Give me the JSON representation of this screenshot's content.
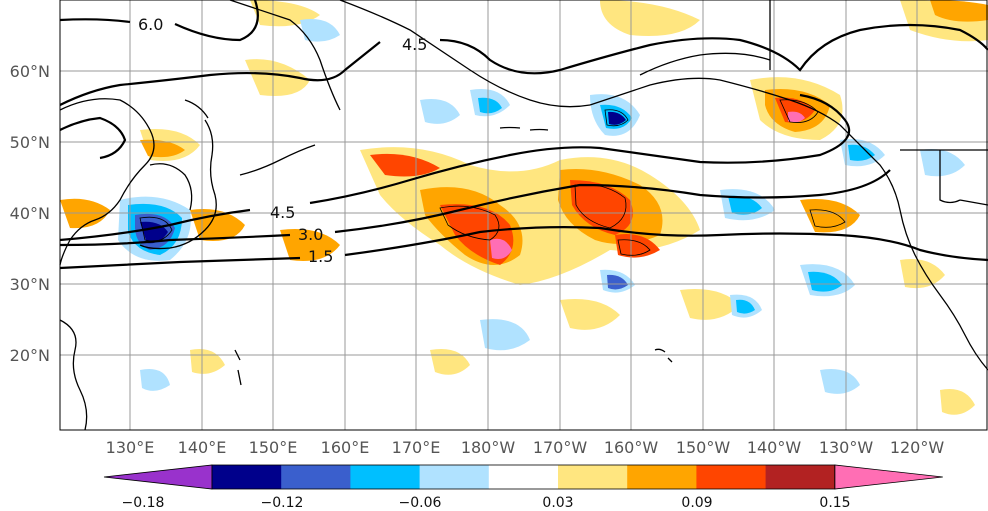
{
  "map": {
    "lat_labels": [
      "60°N",
      "50°N",
      "40°N",
      "30°N",
      "20°N"
    ],
    "lon_labels": [
      "130°E",
      "140°E",
      "150°E",
      "160°E",
      "170°E",
      "180°W",
      "170°W",
      "160°W",
      "150°W",
      "140°W",
      "130°W",
      "120°W"
    ],
    "contour_labels": [
      "6.0",
      "4.5",
      "4.5",
      "3.0",
      "1.5"
    ]
  },
  "colorbar": {
    "tick_labels": [
      "−0.18",
      "−0.12",
      "−0.06",
      "0.03",
      "0.09",
      "0.15"
    ],
    "colors": [
      "#9932cc",
      "#00008b",
      "#3a5fcd",
      "#00bfff",
      "#b0e2ff",
      "#ffffff",
      "#ffe680",
      "#ffa500",
      "#ff4500",
      "#b22222",
      "#ff6eb4"
    ]
  },
  "colors": {
    "land": "#ffffff",
    "grid": "#999999",
    "coast": "#000000"
  }
}
